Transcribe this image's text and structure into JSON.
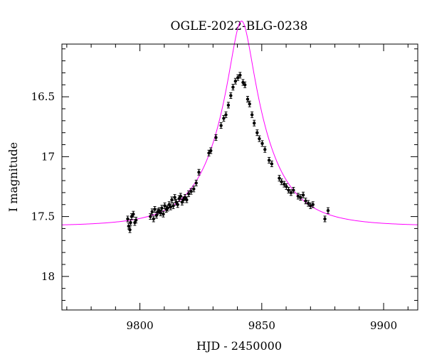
{
  "chart_data": {
    "type": "scatter",
    "title": "OGLE-2022-BLG-0238",
    "xlabel": "HJD - 2450000",
    "ylabel": "I magnitude",
    "xlim": [
      9768,
      9914
    ],
    "ylim": [
      18.28,
      16.06
    ],
    "y_inverted": true,
    "x_ticks": [
      9800,
      9850,
      9900
    ],
    "x_tick_labels": [
      "9800",
      "9850",
      "9900"
    ],
    "y_ticks": [
      16.5,
      17,
      17.5,
      18
    ],
    "y_tick_labels": [
      "16.5",
      "17",
      "17.5",
      "18"
    ],
    "grid": false,
    "legend": "none",
    "colors": {
      "data": "#000000",
      "model": "#ff00ff"
    },
    "model": {
      "name": "",
      "params": {
        "t0": 9841.7,
        "u0": 0.21,
        "tE": 21.0,
        "I_base": 17.58
      }
    },
    "series": [
      {
        "name": "",
        "x": [
          9795.0,
          9795.4,
          9795.9,
          9796.2,
          9796.6,
          9797.3,
          9797.9,
          9798.4,
          9804.3,
          9805.0,
          9805.6,
          9806.1,
          9806.8,
          9807.3,
          9807.9,
          9808.5,
          9809.0,
          9809.6,
          9810.2,
          9810.8,
          9811.4,
          9812.0,
          9812.6,
          9813.1,
          9813.7,
          9814.3,
          9814.9,
          9815.5,
          9816.1,
          9816.7,
          9817.3,
          9817.8,
          9818.5,
          9819.2,
          9820.0,
          9821.0,
          9822.1,
          9823.1,
          9824.2,
          9828.3,
          9829.1,
          9831.2,
          9833.3,
          9834.4,
          9835.3,
          9836.3,
          9837.3,
          9838.2,
          9839.2,
          9840.2,
          9841.1,
          9842.3,
          9843.1,
          9844.2,
          9845.0,
          9846.0,
          9846.9,
          9848.1,
          9849.0,
          9850.2,
          9851.3,
          9853.0,
          9854.1,
          9857.2,
          9858.1,
          9859.2,
          9860.1,
          9861.0,
          9862.0,
          9863.0,
          9864.9,
          9865.9,
          9867.0,
          9868.0,
          9869.1,
          9870.0,
          9871.0,
          9875.9,
          9877.2
        ],
        "y": [
          17.52,
          17.58,
          17.61,
          17.55,
          17.5,
          17.48,
          17.55,
          17.53,
          17.5,
          17.46,
          17.52,
          17.44,
          17.49,
          17.46,
          17.45,
          17.47,
          17.43,
          17.48,
          17.41,
          17.44,
          17.43,
          17.4,
          17.42,
          17.36,
          17.41,
          17.34,
          17.38,
          17.4,
          17.35,
          17.33,
          17.38,
          17.36,
          17.34,
          17.36,
          17.31,
          17.29,
          17.27,
          17.22,
          17.13,
          16.97,
          16.95,
          16.84,
          16.74,
          16.68,
          16.65,
          16.57,
          16.49,
          16.42,
          16.37,
          16.34,
          16.32,
          16.38,
          16.4,
          16.52,
          16.56,
          16.65,
          16.72,
          16.8,
          16.85,
          16.89,
          16.94,
          17.03,
          17.06,
          17.18,
          17.21,
          17.23,
          17.25,
          17.28,
          17.3,
          17.28,
          17.33,
          17.34,
          17.32,
          17.37,
          17.39,
          17.41,
          17.4,
          17.52,
          17.45
        ]
      }
    ]
  }
}
